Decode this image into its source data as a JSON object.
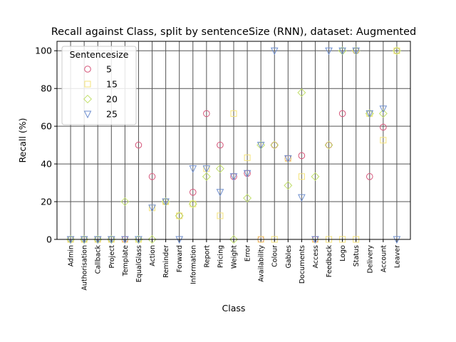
{
  "chart_data": {
    "type": "scatter",
    "title": "Recall against Class, split by sentenceSize (RNN), dataset: Augmented",
    "xlabel": "Class",
    "ylabel": "Recall (%)",
    "ylim": [
      0,
      105
    ],
    "yticks": [
      0,
      20,
      40,
      60,
      80,
      100
    ],
    "grid": true,
    "legend": {
      "title": "Sentencesize",
      "placement": "top-left"
    },
    "categories": [
      "Admin",
      "Authorisation",
      "Callback",
      "Project",
      "Template",
      "EqualGlass",
      "Action",
      "Reminder",
      "Forward",
      "Information",
      "Report",
      "Pricing",
      "Weight",
      "Error",
      "Availability",
      "Colour",
      "Gables",
      "Documents",
      "Access",
      "Feedback",
      "Logo",
      "Status",
      "Delivery",
      "Account",
      "Leaver"
    ],
    "series": [
      {
        "name": "5",
        "marker": "circle",
        "color": "#d6557a",
        "values": [
          0,
          0,
          0,
          0,
          0,
          50,
          33.3,
          20,
          12.5,
          25,
          66.7,
          50,
          33.3,
          35,
          0,
          50,
          42.9,
          44.4,
          0,
          50,
          66.7,
          100,
          33.3,
          59.5,
          100
        ]
      },
      {
        "name": "15",
        "marker": "square",
        "color": "#f5e37a",
        "values": [
          0,
          0,
          0,
          0,
          0,
          0,
          16.7,
          20,
          12.5,
          18.8,
          37.5,
          12.5,
          66.7,
          43.3,
          0,
          0,
          42.9,
          33.3,
          0,
          0,
          0,
          0,
          66.7,
          52.6,
          100
        ]
      },
      {
        "name": "20",
        "marker": "diamond",
        "color": "#c2e06b",
        "values": [
          0,
          0,
          0,
          0,
          20,
          0,
          0,
          20,
          12.5,
          18.8,
          33.3,
          37.5,
          0,
          21.9,
          50,
          50,
          28.6,
          77.8,
          33.3,
          50,
          100,
          100,
          66.7,
          66.7,
          100
        ]
      },
      {
        "name": "25",
        "marker": "triangle-down",
        "color": "#6f8fcf",
        "values": [
          0,
          0,
          0,
          0,
          0,
          0,
          16.7,
          20,
          0,
          37.5,
          37.5,
          25,
          33.3,
          35,
          50,
          100,
          42.9,
          22.2,
          0,
          100,
          100,
          100,
          66.7,
          69.2,
          0
        ]
      }
    ]
  }
}
